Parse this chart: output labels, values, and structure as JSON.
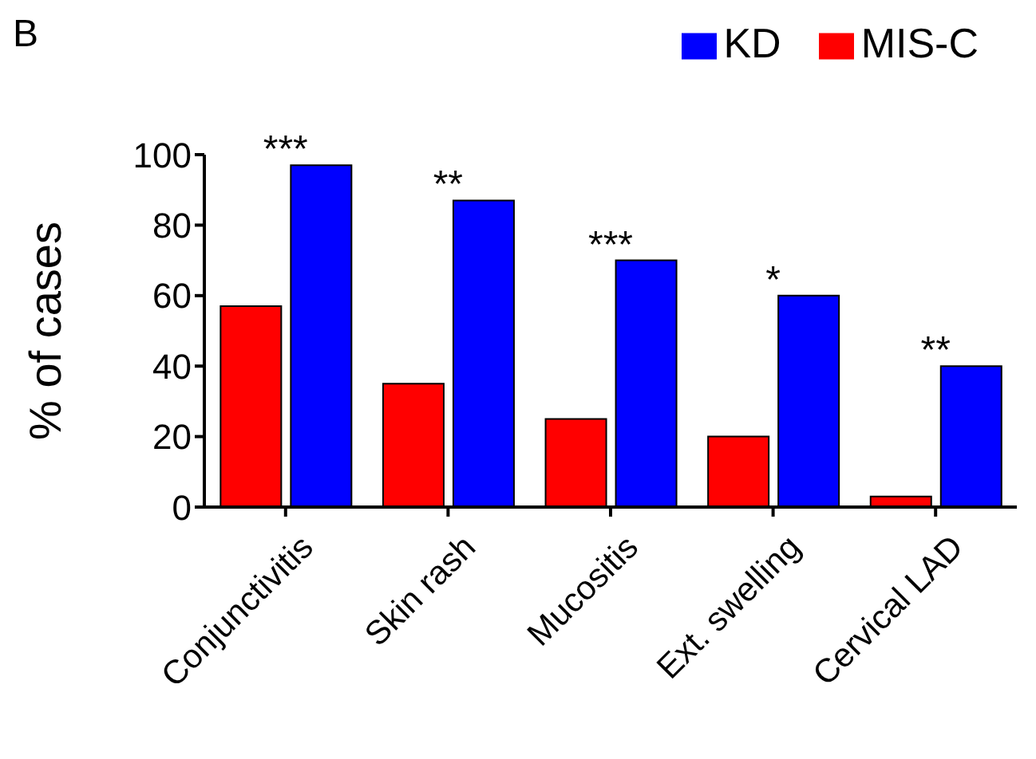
{
  "chart_data": {
    "type": "bar",
    "ylabel": "% of cases",
    "categories": [
      "Conjunctivitis",
      "Skin rash",
      "Mucositis",
      "Ext. swelling",
      "Cervical LAD"
    ],
    "series": [
      {
        "name": "MIS-C",
        "color": "#ff0000",
        "values": [
          57,
          35,
          25,
          20,
          3
        ]
      },
      {
        "name": "KD",
        "color": "#0000ff",
        "values": [
          97,
          87,
          70,
          60,
          40
        ]
      }
    ],
    "ylim": [
      0,
      100
    ],
    "yticks": [
      0,
      20,
      40,
      60,
      80,
      100
    ],
    "grid": false,
    "legend": "top right",
    "annotations": [
      "B",
      {
        "text": "***",
        "x": "Conjunctivitis",
        "y": 97
      },
      {
        "text": "**",
        "x": "Skin rash",
        "y": 87
      },
      {
        "text": "***",
        "x": "Mucositis",
        "y": 70
      },
      {
        "text": "*",
        "x": "Ext. swelling",
        "y": 60
      },
      {
        "text": "**",
        "x": "Cervical LAD",
        "y": 40
      }
    ]
  }
}
